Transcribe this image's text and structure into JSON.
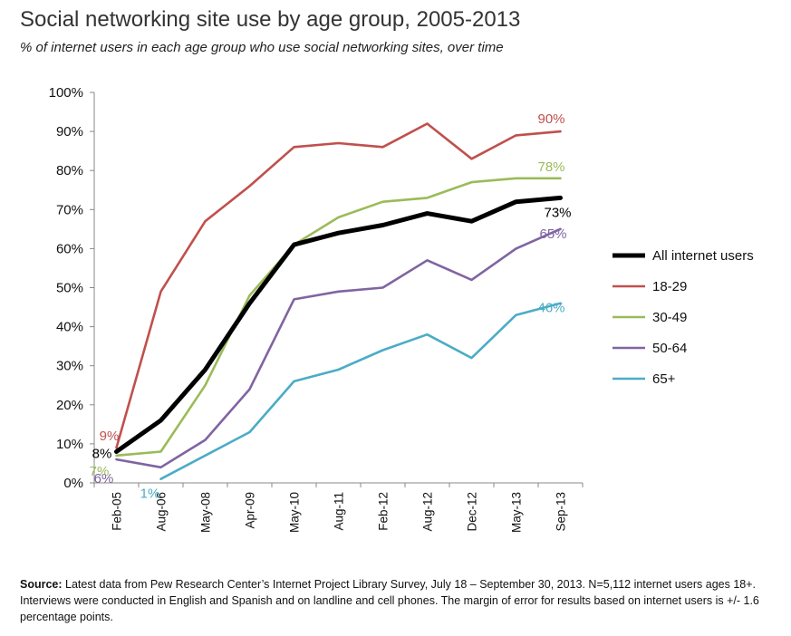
{
  "title": "Social networking site use by age group, 2005-2013",
  "subtitle": "% of internet users in each age group who use social networking sites, over time",
  "source_label": "Source:",
  "source_text": "Latest data from Pew Research Center’s Internet Project Library Survey, July 18 – September 30, 2013. N=5,112 internet users ages 18+. Interviews were conducted in English and Spanish and on landline and cell phones.  The margin of error for results based on internet users is +/- 1.6 percentage points.",
  "chart_data": {
    "type": "line",
    "categories": [
      "Feb-05",
      "Aug-06",
      "May-08",
      "Apr-09",
      "May-10",
      "Aug-11",
      "Feb-12",
      "Aug-12",
      "Dec-12",
      "May-13",
      "Sep-13"
    ],
    "ylim": [
      0,
      100
    ],
    "yticks": [
      "0%",
      "10%",
      "20%",
      "30%",
      "40%",
      "50%",
      "60%",
      "70%",
      "80%",
      "90%",
      "100%"
    ],
    "grid": false,
    "legend_position": "right",
    "series": [
      {
        "name": "All internet users",
        "color": "#000000",
        "width": "thick",
        "values": [
          8,
          16,
          29,
          46,
          61,
          64,
          66,
          69,
          67,
          72,
          73
        ],
        "start_label": "8%",
        "end_label": "73%"
      },
      {
        "name": "18-29",
        "color": "#c0504d",
        "width": "normal",
        "values": [
          9,
          49,
          67,
          76,
          86,
          87,
          86,
          92,
          83,
          89,
          90
        ],
        "start_label": "9%",
        "end_label": "90%"
      },
      {
        "name": "30-49",
        "color": "#9bbb59",
        "width": "normal",
        "values": [
          7,
          8,
          25,
          48,
          61,
          68,
          72,
          73,
          77,
          78,
          78
        ],
        "start_label": "7%",
        "end_label": "78%"
      },
      {
        "name": "50-64",
        "color": "#8064a2",
        "width": "normal",
        "values": [
          6,
          4,
          11,
          24,
          47,
          49,
          50,
          57,
          52,
          60,
          65
        ],
        "start_label": "6%",
        "end_label": "65%"
      },
      {
        "name": "65+",
        "color": "#4bacc6",
        "width": "normal",
        "values": [
          null,
          1,
          7,
          13,
          26,
          29,
          34,
          38,
          32,
          43,
          46
        ],
        "start_label": "1%",
        "end_label": "46%"
      }
    ]
  }
}
